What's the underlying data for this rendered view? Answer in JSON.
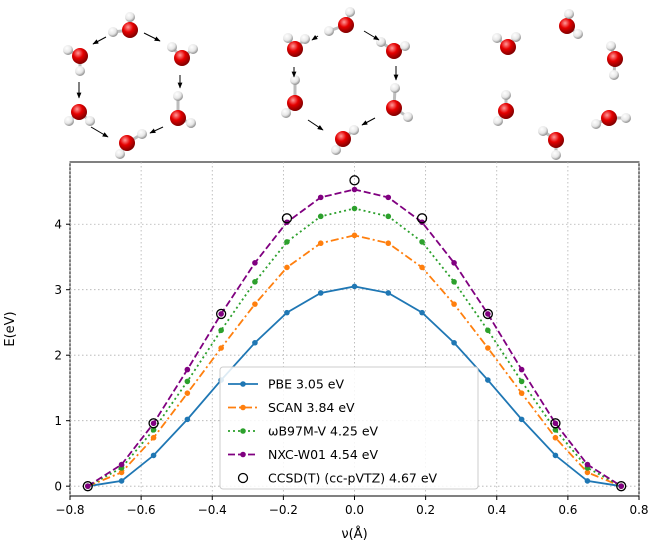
{
  "figure": {
    "molecule_panels": [
      {
        "name": "cyclic-water-hexamer-left-arrows"
      },
      {
        "name": "cyclic-water-hexamer-right-arrows"
      },
      {
        "name": "dissociated-water-molecules"
      }
    ],
    "colors": {
      "oxygen": "#e00000",
      "hydrogen": "#f2f2f2",
      "arrow": "#000000"
    }
  },
  "chart_data": {
    "type": "line",
    "title": "",
    "xlabel": "ν(Å)",
    "ylabel": "E(eV)",
    "xlim": [
      -0.8,
      0.8
    ],
    "ylim": [
      -0.15,
      4.95
    ],
    "xticks": [
      -0.8,
      -0.6,
      -0.4,
      -0.2,
      0.0,
      0.2,
      0.4,
      0.6,
      0.8
    ],
    "xtick_labels": [
      "−0.8",
      "−0.6",
      "−0.4",
      "−0.2",
      "0.0",
      "0.2",
      "0.4",
      "0.6",
      "0.8"
    ],
    "yticks": [
      0,
      1,
      2,
      3,
      4
    ],
    "ytick_labels": [
      "0",
      "1",
      "2",
      "3",
      "4"
    ],
    "grid": true,
    "legend_position": "lower-center",
    "x": [
      -0.75,
      -0.655,
      -0.565,
      -0.47,
      -0.375,
      -0.28,
      -0.19,
      -0.095,
      0.0,
      0.095,
      0.19,
      0.28,
      0.375,
      0.47,
      0.565,
      0.655,
      0.75
    ],
    "series": [
      {
        "name": "PBE 3.05 eV",
        "color": "#1f77b4",
        "style": "solid",
        "values": [
          0.0,
          0.08,
          0.47,
          1.02,
          1.62,
          2.19,
          2.65,
          2.95,
          3.05,
          2.95,
          2.65,
          2.19,
          1.62,
          1.02,
          0.47,
          0.08,
          0.0
        ]
      },
      {
        "name": "SCAN 3.84 eV",
        "color": "#ff7f0e",
        "style": "dashdot",
        "values": [
          0.0,
          0.21,
          0.74,
          1.42,
          2.11,
          2.78,
          3.34,
          3.71,
          3.83,
          3.71,
          3.34,
          2.78,
          2.11,
          1.42,
          0.74,
          0.21,
          0.0
        ]
      },
      {
        "name": "ωB97M-V 4.25 eV",
        "color": "#2ca02c",
        "style": "dotted",
        "values": [
          0.0,
          0.28,
          0.86,
          1.6,
          2.38,
          3.12,
          3.73,
          4.12,
          4.24,
          4.12,
          3.73,
          3.12,
          2.38,
          1.6,
          0.86,
          0.28,
          0.0
        ]
      },
      {
        "name": "NXC-W01 4.54 eV",
        "color": "#800080",
        "style": "dashed",
        "values": [
          0.0,
          0.33,
          0.96,
          1.78,
          2.63,
          3.41,
          4.03,
          4.41,
          4.53,
          4.41,
          4.03,
          3.41,
          2.63,
          1.78,
          0.96,
          0.33,
          0.0
        ]
      }
    ],
    "reference": {
      "name": "CCSD(T) (cc-pVTZ) 4.67 eV",
      "marker": "open-circle",
      "x": [
        -0.75,
        -0.565,
        -0.375,
        -0.19,
        0.0,
        0.19,
        0.375,
        0.565,
        0.75
      ],
      "y": [
        0.0,
        0.96,
        2.63,
        4.09,
        4.67,
        4.09,
        2.63,
        0.96,
        0.0
      ]
    }
  }
}
